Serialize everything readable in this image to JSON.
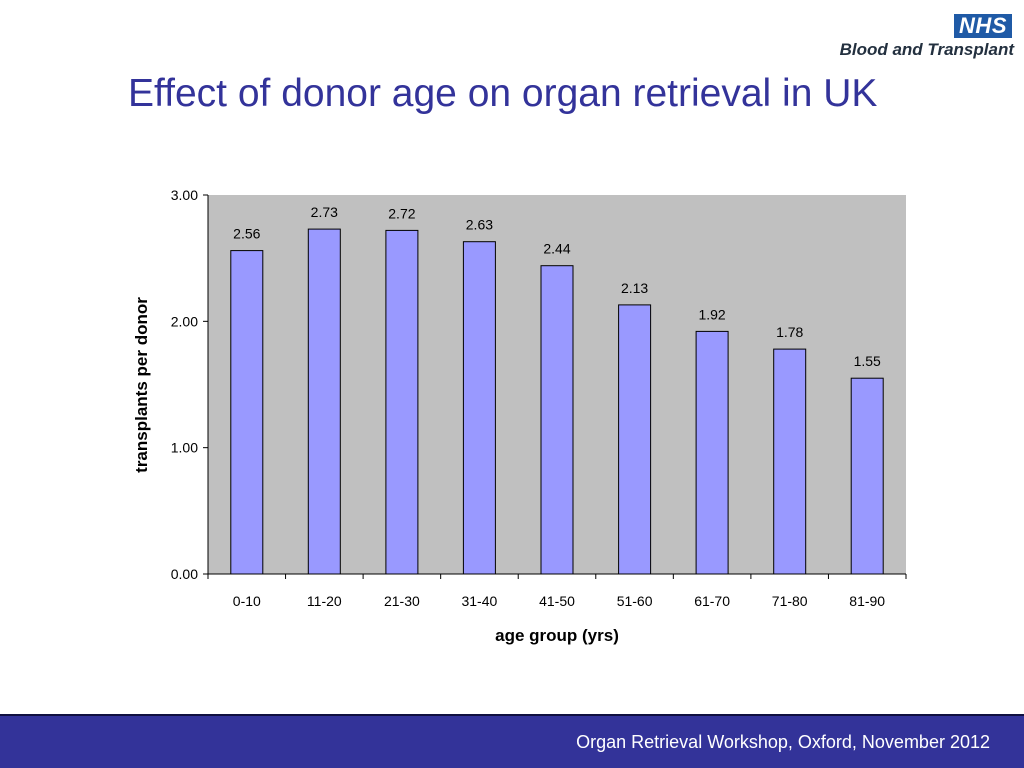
{
  "logo": {
    "badge": "NHS",
    "subtitle": "Blood and Transplant"
  },
  "slide_title": "Effect of donor age on organ retrieval in UK",
  "footer": {
    "text": "Organ Retrieval Workshop, Oxford, November 2012"
  },
  "colors": {
    "title": "#33339a",
    "bar_fill": "#9999ff",
    "plot_background": "#c0c0c0",
    "footer_background": "#333399"
  },
  "chart_data": {
    "type": "bar",
    "title": "",
    "xlabel": "age group (yrs)",
    "ylabel": "transplants per donor",
    "categories": [
      "0-10",
      "11-20",
      "21-30",
      "31-40",
      "41-50",
      "51-60",
      "61-70",
      "71-80",
      "81-90"
    ],
    "values": [
      2.56,
      2.73,
      2.72,
      2.63,
      2.44,
      2.13,
      1.92,
      1.78,
      1.55
    ],
    "data_labels": [
      "2.56",
      "2.73",
      "2.72",
      "2.63",
      "2.44",
      "2.13",
      "1.92",
      "1.78",
      "1.55"
    ],
    "ylim": [
      0,
      3
    ],
    "yticks": [
      "0.00",
      "1.00",
      "2.00",
      "3.00"
    ],
    "grid": false,
    "legend": "none"
  }
}
